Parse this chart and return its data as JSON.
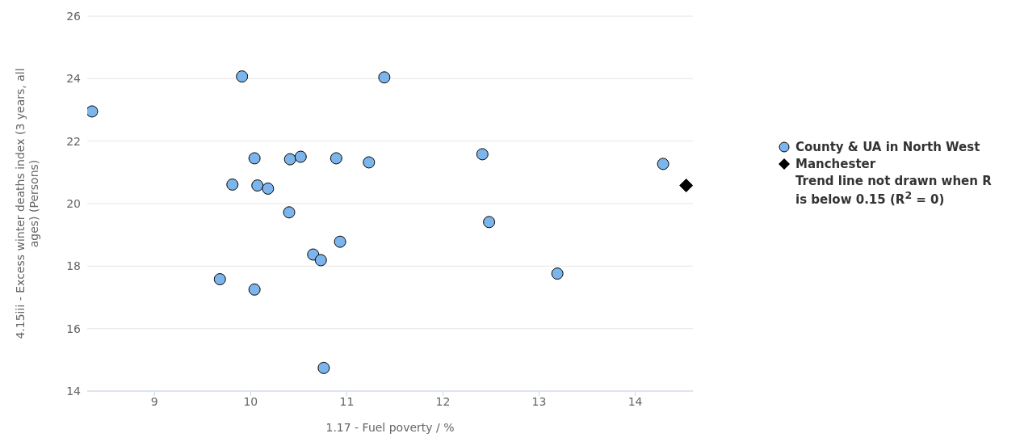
{
  "chart_data": {
    "type": "scatter",
    "xlabel": "1.17 - Fuel poverty / %",
    "ylabel": "4.15iii - Excess winter deaths index (3 years, all ages) (Persons)",
    "xlim": [
      8.3,
      14.6
    ],
    "xticks": [
      9,
      10,
      11,
      12,
      13,
      14
    ],
    "ylim": [
      14,
      26
    ],
    "yticks": [
      14,
      16,
      18,
      20,
      22,
      24,
      26
    ],
    "grid": "y",
    "legend": "right",
    "series": [
      {
        "name": "County & UA in North West",
        "color": "#7cb5ec",
        "marker": "circle",
        "x": [
          8.35,
          9.91,
          11.39,
          9.81,
          10.04,
          10.41,
          10.52,
          10.89,
          11.23,
          12.41,
          14.29,
          10.07,
          10.18,
          10.4,
          12.48,
          10.93,
          10.65,
          10.73,
          9.68,
          13.19,
          10.04,
          10.76
        ],
        "values": [
          22.95,
          24.07,
          24.04,
          20.61,
          21.45,
          21.42,
          21.5,
          21.45,
          21.32,
          21.58,
          21.27,
          20.58,
          20.48,
          19.72,
          19.41,
          18.78,
          18.37,
          18.19,
          17.58,
          17.76,
          17.25,
          14.74
        ]
      },
      {
        "name": "Manchester",
        "color": "#000000",
        "marker": "diamond",
        "x": [
          14.53
        ],
        "values": [
          20.58
        ]
      }
    ],
    "annotations": [
      "Trend line not drawn when R is below 0.15 (R$^{2}$ = 0)"
    ]
  }
}
